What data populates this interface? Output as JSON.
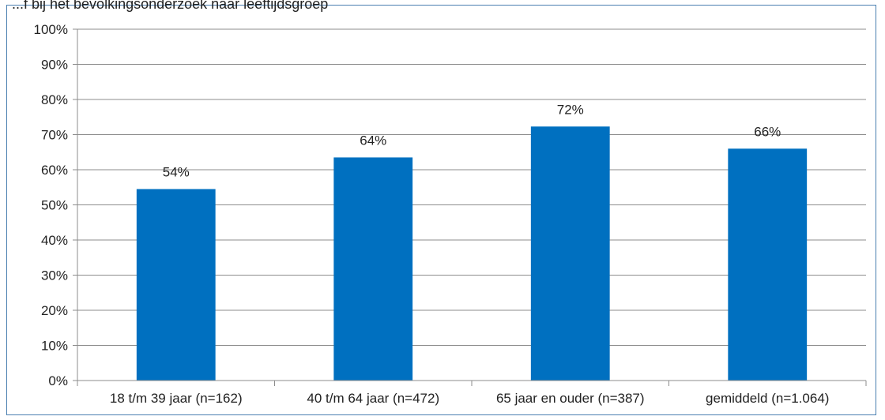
{
  "header": {
    "clipped_title": "...f bij het bevolkingsonderzoek naar leeftijdsgroep"
  },
  "chart_data": {
    "type": "bar",
    "categories": [
      "18 t/m 39 jaar (n=162)",
      "40 t/m 64 jaar (n=472)",
      "65 jaar en ouder (n=387)",
      "gemiddeld (n=1.064)"
    ],
    "values": [
      54.5,
      63.5,
      72.3,
      66.0
    ],
    "data_labels": [
      "54%",
      "64%",
      "72%",
      "66%"
    ],
    "y_ticks": [
      0,
      10,
      20,
      30,
      40,
      50,
      60,
      70,
      80,
      90,
      100
    ],
    "y_tick_labels": [
      "0%",
      "10%",
      "20%",
      "30%",
      "40%",
      "50%",
      "60%",
      "70%",
      "80%",
      "90%",
      "100%"
    ],
    "ylim": [
      0,
      100
    ],
    "grid": true,
    "bar_color": "#0070c0",
    "grid_color": "#8c8c8c",
    "legend": "none"
  }
}
